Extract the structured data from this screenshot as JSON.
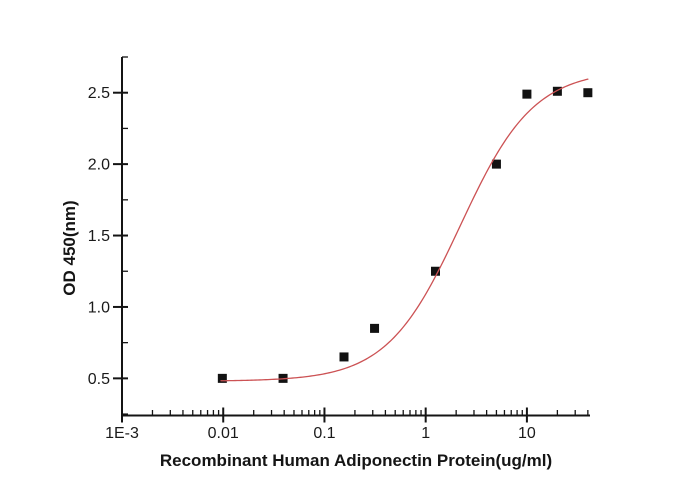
{
  "chart_data": {
    "type": "scatter",
    "title": "",
    "xlabel": "Recombinant Human Adiponectin Protein(ug/ml)",
    "ylabel": "OD 450(nm)",
    "x_scale": "log",
    "y_scale": "linear",
    "xlim": [
      0.001,
      42
    ],
    "ylim": [
      0.24,
      2.75
    ],
    "grid": false,
    "legend": "none",
    "x_major_ticks": [
      {
        "value": 0.001,
        "label": "1E-3"
      },
      {
        "value": 0.01,
        "label": "0.01"
      },
      {
        "value": 0.1,
        "label": "0.1"
      },
      {
        "value": 1,
        "label": "1"
      },
      {
        "value": 10,
        "label": "10"
      }
    ],
    "x_minor_tick_multiples": [
      2,
      3,
      4,
      5,
      6,
      7,
      8,
      9
    ],
    "y_major_ticks": [
      {
        "value": 0.5,
        "label": "0.5"
      },
      {
        "value": 1.0,
        "label": "1.0"
      },
      {
        "value": 1.5,
        "label": "1.5"
      },
      {
        "value": 2.0,
        "label": "2.0"
      },
      {
        "value": 2.5,
        "label": "2.5"
      }
    ],
    "y_minor_step": 0.25,
    "points": [
      {
        "x": 0.0098,
        "y": 0.5
      },
      {
        "x": 0.039,
        "y": 0.5
      },
      {
        "x": 0.156,
        "y": 0.65
      },
      {
        "x": 0.3125,
        "y": 0.85
      },
      {
        "x": 1.25,
        "y": 1.25
      },
      {
        "x": 5,
        "y": 2.0
      },
      {
        "x": 10,
        "y": 2.49
      },
      {
        "x": 20,
        "y": 2.51
      },
      {
        "x": 40,
        "y": 2.5
      }
    ],
    "marker": {
      "shape": "square",
      "color": "#121212",
      "size": 9
    },
    "fit_curve": {
      "model": "4PL",
      "bottom": 0.48,
      "top": 2.66,
      "ec50": 2.2,
      "hill": 1.2,
      "x_start": 0.0095,
      "x_end": 40,
      "color": "#cc5254"
    },
    "axis_color": "#141414",
    "background_color": "#ffffff"
  }
}
